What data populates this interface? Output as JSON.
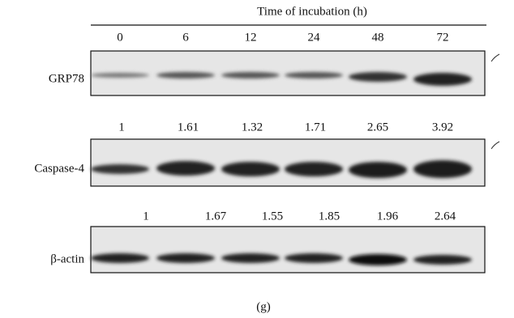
{
  "header": {
    "title": "Time of incubation (h)",
    "time_points": [
      0,
      6,
      12,
      24,
      48,
      72
    ]
  },
  "panels": [
    {
      "label": "GRP78",
      "ratios": [
        1,
        1.61,
        1.32,
        1.71,
        2.65,
        3.92
      ]
    },
    {
      "label": "Caspase-4",
      "ratios": [
        1,
        1.67,
        1.55,
        1.85,
        1.96,
        2.64
      ]
    },
    {
      "label": "β-actin"
    }
  ],
  "caption": "(g)"
}
